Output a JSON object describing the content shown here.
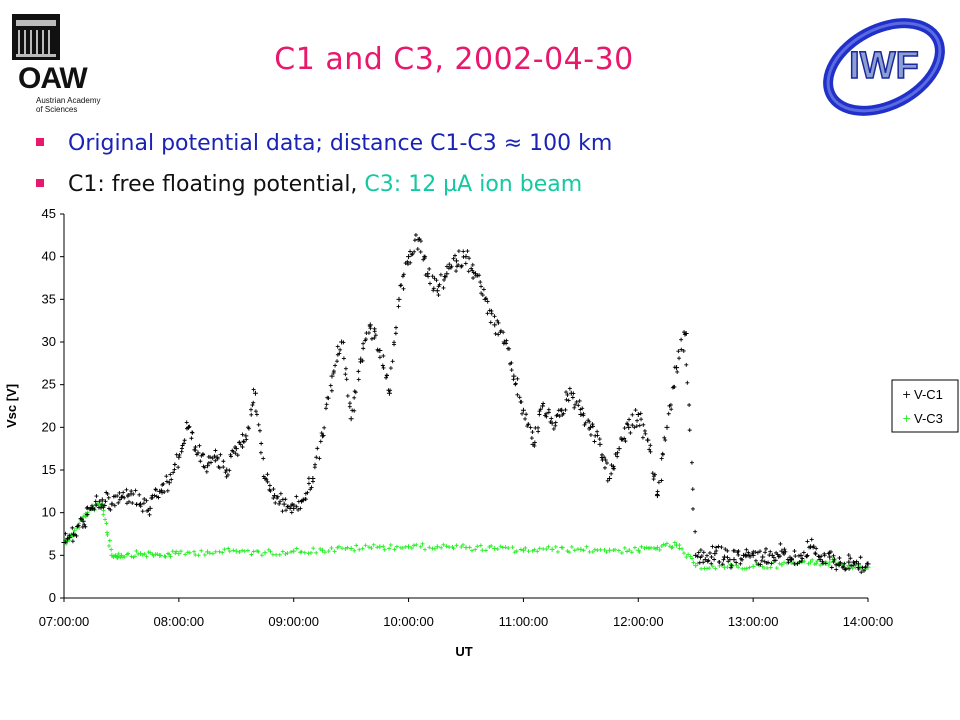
{
  "slide": {
    "title": "C1 and C3, 2002-04-30",
    "bullets": [
      {
        "parts": [
          {
            "text": "Original potential data;  distance C1-C3 ≈ 100 km",
            "color": "#1a24b4"
          }
        ]
      },
      {
        "parts": [
          {
            "text": "C1: free floating potential,",
            "color": "#111111"
          },
          {
            "text": " C3: 12 µA ion beam",
            "color": "#14c8a0"
          }
        ]
      }
    ],
    "colors": {
      "title": "#e8186d",
      "bullet_marker": "#e8186d"
    }
  },
  "logos": {
    "oeaw": {
      "abbr": "OAW",
      "line1": "Austrian Academy",
      "line2": "of Sciences",
      "icon": "building-icon"
    },
    "iwf": {
      "text": "IWF",
      "ring_color": "#2030c8",
      "text_color": "#7a8ec8"
    }
  },
  "chart_data": {
    "type": "scatter",
    "title": "",
    "xlabel": "UT",
    "ylabel": "Vsc [V]",
    "xlim": [
      "07:00:00",
      "14:00:00"
    ],
    "ylim": [
      0,
      45
    ],
    "x_ticks": [
      "07:00:00",
      "08:00:00",
      "09:00:00",
      "10:00:00",
      "11:00:00",
      "12:00:00",
      "13:00:00",
      "14:00:00"
    ],
    "y_ticks": [
      0,
      5,
      10,
      15,
      20,
      25,
      30,
      35,
      40,
      45
    ],
    "grid": false,
    "legend_position": "right",
    "series": [
      {
        "name": "V-C1",
        "color": "#000000",
        "marker": "+",
        "points": [
          [
            "07:00",
            6.5
          ],
          [
            "07:05",
            7.5
          ],
          [
            "07:10",
            9.0
          ],
          [
            "07:15",
            10.5
          ],
          [
            "07:20",
            11.5
          ],
          [
            "07:25",
            11.0
          ],
          [
            "07:30",
            11.8
          ],
          [
            "07:35",
            12.2
          ],
          [
            "07:40",
            11.0
          ],
          [
            "07:45",
            10.5
          ],
          [
            "07:50",
            12.5
          ],
          [
            "07:55",
            13.5
          ],
          [
            "08:00",
            16.5
          ],
          [
            "08:05",
            20.0
          ],
          [
            "08:10",
            17.0
          ],
          [
            "08:15",
            15.5
          ],
          [
            "08:20",
            16.5
          ],
          [
            "08:25",
            15.0
          ],
          [
            "08:30",
            17.5
          ],
          [
            "08:35",
            19.0
          ],
          [
            "08:40",
            24.0
          ],
          [
            "08:45",
            14.0
          ],
          [
            "08:50",
            12.0
          ],
          [
            "08:55",
            11.0
          ],
          [
            "09:00",
            10.5
          ],
          [
            "09:05",
            11.5
          ],
          [
            "09:10",
            14.0
          ],
          [
            "09:15",
            19.0
          ],
          [
            "09:20",
            26.0
          ],
          [
            "09:25",
            30.0
          ],
          [
            "09:30",
            21.0
          ],
          [
            "09:35",
            28.0
          ],
          [
            "09:40",
            32.0
          ],
          [
            "09:45",
            29.0
          ],
          [
            "09:50",
            24.0
          ],
          [
            "09:55",
            35.0
          ],
          [
            "10:00",
            40.0
          ],
          [
            "10:05",
            42.0
          ],
          [
            "10:10",
            38.0
          ],
          [
            "10:15",
            36.0
          ],
          [
            "10:20",
            38.0
          ],
          [
            "10:25",
            39.5
          ],
          [
            "10:30",
            40.0
          ],
          [
            "10:35",
            38.0
          ],
          [
            "10:40",
            35.0
          ],
          [
            "10:45",
            32.0
          ],
          [
            "10:50",
            30.0
          ],
          [
            "10:55",
            26.0
          ],
          [
            "11:00",
            22.0
          ],
          [
            "11:05",
            18.0
          ],
          [
            "11:10",
            22.5
          ],
          [
            "11:15",
            20.5
          ],
          [
            "11:20",
            22.0
          ],
          [
            "11:25",
            24.0
          ],
          [
            "11:30",
            21.5
          ],
          [
            "11:35",
            20.0
          ],
          [
            "11:40",
            18.0
          ],
          [
            "11:45",
            14.0
          ],
          [
            "11:50",
            17.5
          ],
          [
            "11:55",
            20.0
          ],
          [
            "12:00",
            21.5
          ],
          [
            "12:05",
            18.5
          ],
          [
            "12:10",
            12.0
          ],
          [
            "12:15",
            20.0
          ],
          [
            "12:20",
            27.0
          ],
          [
            "12:25",
            31.0
          ],
          [
            "12:30",
            5.0
          ],
          [
            "12:35",
            4.5
          ],
          [
            "12:40",
            5.2
          ],
          [
            "12:45",
            4.8
          ],
          [
            "12:50",
            4.5
          ],
          [
            "12:55",
            5.0
          ],
          [
            "13:00",
            5.0
          ],
          [
            "13:05",
            4.8
          ],
          [
            "13:10",
            5.0
          ],
          [
            "13:15",
            5.5
          ],
          [
            "13:20",
            4.5
          ],
          [
            "13:25",
            5.0
          ],
          [
            "13:30",
            6.0
          ],
          [
            "13:35",
            4.5
          ],
          [
            "13:40",
            4.8
          ],
          [
            "13:45",
            4.0
          ],
          [
            "13:50",
            4.2
          ],
          [
            "13:55",
            4.0
          ],
          [
            "14:00",
            4.0
          ]
        ]
      },
      {
        "name": "V-C3",
        "color": "#22ee22",
        "marker": "+",
        "points": [
          [
            "07:00",
            6.5
          ],
          [
            "07:05",
            7.5
          ],
          [
            "07:10",
            9.5
          ],
          [
            "07:15",
            10.5
          ],
          [
            "07:20",
            11.0
          ],
          [
            "07:25",
            5.0
          ],
          [
            "07:30",
            5.0
          ],
          [
            "07:40",
            5.2
          ],
          [
            "07:50",
            5.0
          ],
          [
            "08:00",
            5.2
          ],
          [
            "08:15",
            5.4
          ],
          [
            "08:30",
            5.5
          ],
          [
            "08:45",
            5.3
          ],
          [
            "09:00",
            5.5
          ],
          [
            "09:15",
            5.6
          ],
          [
            "09:30",
            5.8
          ],
          [
            "09:45",
            6.0
          ],
          [
            "10:00",
            6.0
          ],
          [
            "10:15",
            6.0
          ],
          [
            "10:30",
            5.9
          ],
          [
            "10:45",
            5.8
          ],
          [
            "11:00",
            5.6
          ],
          [
            "11:15",
            5.7
          ],
          [
            "11:30",
            5.7
          ],
          [
            "11:45",
            5.6
          ],
          [
            "12:00",
            5.6
          ],
          [
            "12:10",
            5.9
          ],
          [
            "12:20",
            6.2
          ],
          [
            "12:30",
            3.8
          ],
          [
            "12:45",
            3.6
          ],
          [
            "13:00",
            3.7
          ],
          [
            "13:15",
            3.9
          ],
          [
            "13:30",
            4.2
          ],
          [
            "13:40",
            4.2
          ],
          [
            "13:50",
            3.8
          ],
          [
            "14:00",
            3.6
          ]
        ]
      }
    ]
  }
}
